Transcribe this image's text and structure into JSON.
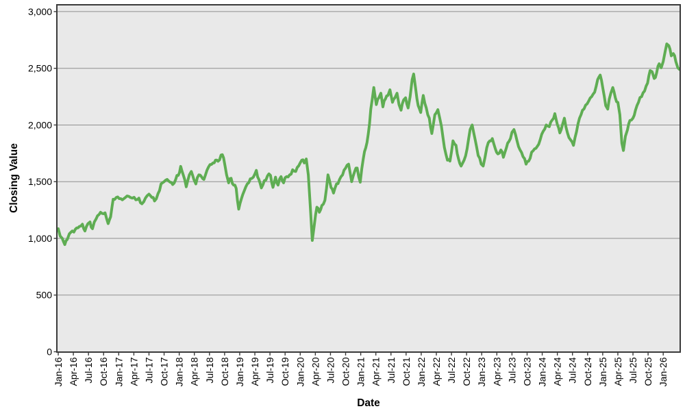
{
  "figure": {
    "background": "#ffffff",
    "plot_background": "#e9e9e9",
    "grid_color": "#8f8f8f",
    "frame_color": "#3a3a3a",
    "line_color": "#5fad53",
    "text_color": "#000000"
  },
  "chart_data": {
    "type": "line",
    "title": "",
    "xlabel": "Date",
    "ylabel": "Closing Value",
    "legend": "none",
    "grid": "horizontal",
    "x_unit": "months since Jan-16",
    "xlim_months": [
      -0.3,
      123.4
    ],
    "ylim": [
      0,
      3060
    ],
    "x_tick_months": [
      0,
      3,
      6,
      9,
      12,
      15,
      18,
      21,
      24,
      27,
      30,
      33,
      36,
      39,
      42,
      45,
      48,
      51,
      54,
      57,
      60,
      63,
      66,
      69,
      72,
      75,
      78,
      81,
      84,
      87,
      90,
      93,
      96,
      99,
      102,
      105,
      108,
      111,
      114,
      117,
      120
    ],
    "x_tick_labels": [
      "Jan-16",
      "Apr-16",
      "Jul-16",
      "Oct-16",
      "Jan-17",
      "Apr-17",
      "Jul-17",
      "Oct-17",
      "Jan-18",
      "Apr-18",
      "Jul-18",
      "Oct-18",
      "Jan-19",
      "Apr-19",
      "Jul-19",
      "Oct-19",
      "Jan-20",
      "Apr-20",
      "Jul-20",
      "Oct-20",
      "Jan-21",
      "Apr-21",
      "Jul-21",
      "Oct-21",
      "Jan-22",
      "Apr-22",
      "Jul-22",
      "Oct-22",
      "Jan-23",
      "Apr-23",
      "Jul-23",
      "Oct-23",
      "Jan-24",
      "Apr-24",
      "Jul-24",
      "Oct-24",
      "Jan-25",
      "Apr-25",
      "Jul-25",
      "Oct-25",
      "Jan-26"
    ],
    "y_tick_values": [
      0,
      500,
      1000,
      1500,
      2000,
      2500,
      3000
    ],
    "y_tick_labels": [
      "0",
      "500",
      "1,000",
      "1,500",
      "2,000",
      "2,500",
      "3,000"
    ],
    "noise_amplitude": 18,
    "series": [
      {
        "name": "Closing Value",
        "color": "#5fad53",
        "points": [
          [
            0,
            1085
          ],
          [
            0.4,
            1020
          ],
          [
            0.8,
            1000
          ],
          [
            1.3,
            945
          ],
          [
            1.8,
            990
          ],
          [
            2.2,
            1040
          ],
          [
            2.8,
            1065
          ],
          [
            3.4,
            1080
          ],
          [
            4.2,
            1105
          ],
          [
            4.8,
            1125
          ],
          [
            5.3,
            1065
          ],
          [
            5.9,
            1130
          ],
          [
            6.3,
            1145
          ],
          [
            6.8,
            1085
          ],
          [
            7.5,
            1170
          ],
          [
            8.1,
            1210
          ],
          [
            8.7,
            1220
          ],
          [
            9.3,
            1225
          ],
          [
            9.9,
            1130
          ],
          [
            10.4,
            1190
          ],
          [
            10.9,
            1345
          ],
          [
            11.5,
            1360
          ],
          [
            12.1,
            1350
          ],
          [
            12.7,
            1340
          ],
          [
            13.3,
            1360
          ],
          [
            14,
            1370
          ],
          [
            14.7,
            1355
          ],
          [
            15.4,
            1340
          ],
          [
            16,
            1355
          ],
          [
            16.6,
            1305
          ],
          [
            17.3,
            1355
          ],
          [
            18,
            1390
          ],
          [
            18.6,
            1360
          ],
          [
            19.1,
            1330
          ],
          [
            19.8,
            1395
          ],
          [
            20.4,
            1480
          ],
          [
            21,
            1500
          ],
          [
            21.6,
            1520
          ],
          [
            22.2,
            1495
          ],
          [
            22.7,
            1475
          ],
          [
            23.3,
            1520
          ],
          [
            23.8,
            1555
          ],
          [
            24.3,
            1635
          ],
          [
            24.8,
            1560
          ],
          [
            25.4,
            1455
          ],
          [
            26,
            1560
          ],
          [
            26.4,
            1590
          ],
          [
            26.9,
            1520
          ],
          [
            27.3,
            1480
          ],
          [
            27.9,
            1560
          ],
          [
            28.4,
            1545
          ],
          [
            28.9,
            1520
          ],
          [
            29.5,
            1600
          ],
          [
            30.1,
            1650
          ],
          [
            30.7,
            1665
          ],
          [
            31.2,
            1690
          ],
          [
            31.7,
            1680
          ],
          [
            32.3,
            1735
          ],
          [
            32.8,
            1710
          ],
          [
            33.4,
            1560
          ],
          [
            33.8,
            1490
          ],
          [
            34.3,
            1530
          ],
          [
            34.8,
            1470
          ],
          [
            35.3,
            1440
          ],
          [
            35.8,
            1258
          ],
          [
            36.3,
            1345
          ],
          [
            36.9,
            1420
          ],
          [
            37.5,
            1480
          ],
          [
            38.1,
            1525
          ],
          [
            38.7,
            1540
          ],
          [
            39.3,
            1600
          ],
          [
            39.8,
            1520
          ],
          [
            40.3,
            1445
          ],
          [
            40.9,
            1510
          ],
          [
            41.5,
            1550
          ],
          [
            42.1,
            1555
          ],
          [
            42.6,
            1450
          ],
          [
            43.1,
            1540
          ],
          [
            43.6,
            1470
          ],
          [
            44.2,
            1545
          ],
          [
            44.7,
            1490
          ],
          [
            45.3,
            1545
          ],
          [
            45.9,
            1560
          ],
          [
            46.5,
            1605
          ],
          [
            47.1,
            1590
          ],
          [
            47.7,
            1640
          ],
          [
            48.3,
            1690
          ],
          [
            48.8,
            1665
          ],
          [
            49.2,
            1700
          ],
          [
            49.6,
            1560
          ],
          [
            50,
            1280
          ],
          [
            50.4,
            982
          ],
          [
            50.8,
            1120
          ],
          [
            51.3,
            1275
          ],
          [
            51.8,
            1230
          ],
          [
            52.3,
            1290
          ],
          [
            52.9,
            1335
          ],
          [
            53.5,
            1560
          ],
          [
            54.1,
            1450
          ],
          [
            54.6,
            1400
          ],
          [
            55.2,
            1480
          ],
          [
            55.8,
            1520
          ],
          [
            56.4,
            1560
          ],
          [
            57,
            1620
          ],
          [
            57.6,
            1655
          ],
          [
            58.2,
            1500
          ],
          [
            58.8,
            1590
          ],
          [
            59.3,
            1620
          ],
          [
            59.9,
            1495
          ],
          [
            60.5,
            1700
          ],
          [
            61,
            1800
          ],
          [
            61.5,
            1920
          ],
          [
            62,
            2140
          ],
          [
            62.3,
            2230
          ],
          [
            62.6,
            2330
          ],
          [
            63.1,
            2180
          ],
          [
            63.6,
            2240
          ],
          [
            64,
            2280
          ],
          [
            64.4,
            2160
          ],
          [
            64.9,
            2230
          ],
          [
            65.4,
            2260
          ],
          [
            65.8,
            2310
          ],
          [
            66.3,
            2200
          ],
          [
            66.8,
            2240
          ],
          [
            67.2,
            2280
          ],
          [
            67.6,
            2180
          ],
          [
            68,
            2130
          ],
          [
            68.5,
            2220
          ],
          [
            68.9,
            2240
          ],
          [
            69.4,
            2150
          ],
          [
            69.8,
            2250
          ],
          [
            70.2,
            2400
          ],
          [
            70.5,
            2450
          ],
          [
            70.9,
            2320
          ],
          [
            71.4,
            2170
          ],
          [
            71.9,
            2110
          ],
          [
            72.4,
            2260
          ],
          [
            73,
            2150
          ],
          [
            73.6,
            2060
          ],
          [
            74.1,
            1925
          ],
          [
            74.7,
            2090
          ],
          [
            75.3,
            2135
          ],
          [
            76,
            1990
          ],
          [
            76.6,
            1800
          ],
          [
            77.2,
            1690
          ],
          [
            77.7,
            1682
          ],
          [
            78.3,
            1860
          ],
          [
            78.9,
            1820
          ],
          [
            79.4,
            1700
          ],
          [
            79.9,
            1638
          ],
          [
            80.5,
            1690
          ],
          [
            81.1,
            1790
          ],
          [
            81.7,
            1960
          ],
          [
            82.1,
            2000
          ],
          [
            82.7,
            1870
          ],
          [
            83.3,
            1730
          ],
          [
            83.9,
            1655
          ],
          [
            84.3,
            1638
          ],
          [
            85,
            1800
          ],
          [
            85.6,
            1860
          ],
          [
            86.1,
            1880
          ],
          [
            86.7,
            1790
          ],
          [
            87.2,
            1745
          ],
          [
            87.8,
            1780
          ],
          [
            88.3,
            1715
          ],
          [
            88.9,
            1800
          ],
          [
            89.4,
            1855
          ],
          [
            90,
            1935
          ],
          [
            90.4,
            1960
          ],
          [
            91,
            1860
          ],
          [
            91.6,
            1780
          ],
          [
            92.2,
            1720
          ],
          [
            92.8,
            1655
          ],
          [
            93.3,
            1680
          ],
          [
            93.9,
            1760
          ],
          [
            94.5,
            1790
          ],
          [
            95,
            1810
          ],
          [
            95.6,
            1870
          ],
          [
            96.2,
            1945
          ],
          [
            96.8,
            2000
          ],
          [
            97.4,
            1985
          ],
          [
            98,
            2045
          ],
          [
            98.5,
            2100
          ],
          [
            99,
            2005
          ],
          [
            99.5,
            1930
          ],
          [
            100,
            2000
          ],
          [
            100.4,
            2060
          ],
          [
            101,
            1930
          ],
          [
            101.6,
            1870
          ],
          [
            102.2,
            1820
          ],
          [
            102.8,
            1940
          ],
          [
            103.4,
            2060
          ],
          [
            104,
            2130
          ],
          [
            104.6,
            2175
          ],
          [
            105.2,
            2210
          ],
          [
            105.8,
            2250
          ],
          [
            106.4,
            2290
          ],
          [
            107,
            2400
          ],
          [
            107.5,
            2440
          ],
          [
            108,
            2330
          ],
          [
            108.6,
            2170
          ],
          [
            109,
            2140
          ],
          [
            109.6,
            2280
          ],
          [
            110,
            2330
          ],
          [
            110.5,
            2240
          ],
          [
            111,
            2200
          ],
          [
            111.4,
            2090
          ],
          [
            111.8,
            1840
          ],
          [
            112.1,
            1775
          ],
          [
            112.5,
            1900
          ],
          [
            112.9,
            1955
          ],
          [
            113.4,
            2040
          ],
          [
            114,
            2060
          ],
          [
            114.5,
            2130
          ],
          [
            115.1,
            2200
          ],
          [
            115.7,
            2250
          ],
          [
            116.3,
            2300
          ],
          [
            116.9,
            2370
          ],
          [
            117.4,
            2480
          ],
          [
            117.8,
            2470
          ],
          [
            118.2,
            2410
          ],
          [
            118.7,
            2460
          ],
          [
            119.2,
            2540
          ],
          [
            119.6,
            2505
          ],
          [
            120,
            2560
          ],
          [
            120.4,
            2650
          ],
          [
            120.7,
            2715
          ],
          [
            121.1,
            2700
          ],
          [
            121.6,
            2610
          ],
          [
            122,
            2630
          ],
          [
            122.5,
            2560
          ],
          [
            122.9,
            2505
          ],
          [
            123.2,
            2490
          ]
        ]
      }
    ]
  }
}
